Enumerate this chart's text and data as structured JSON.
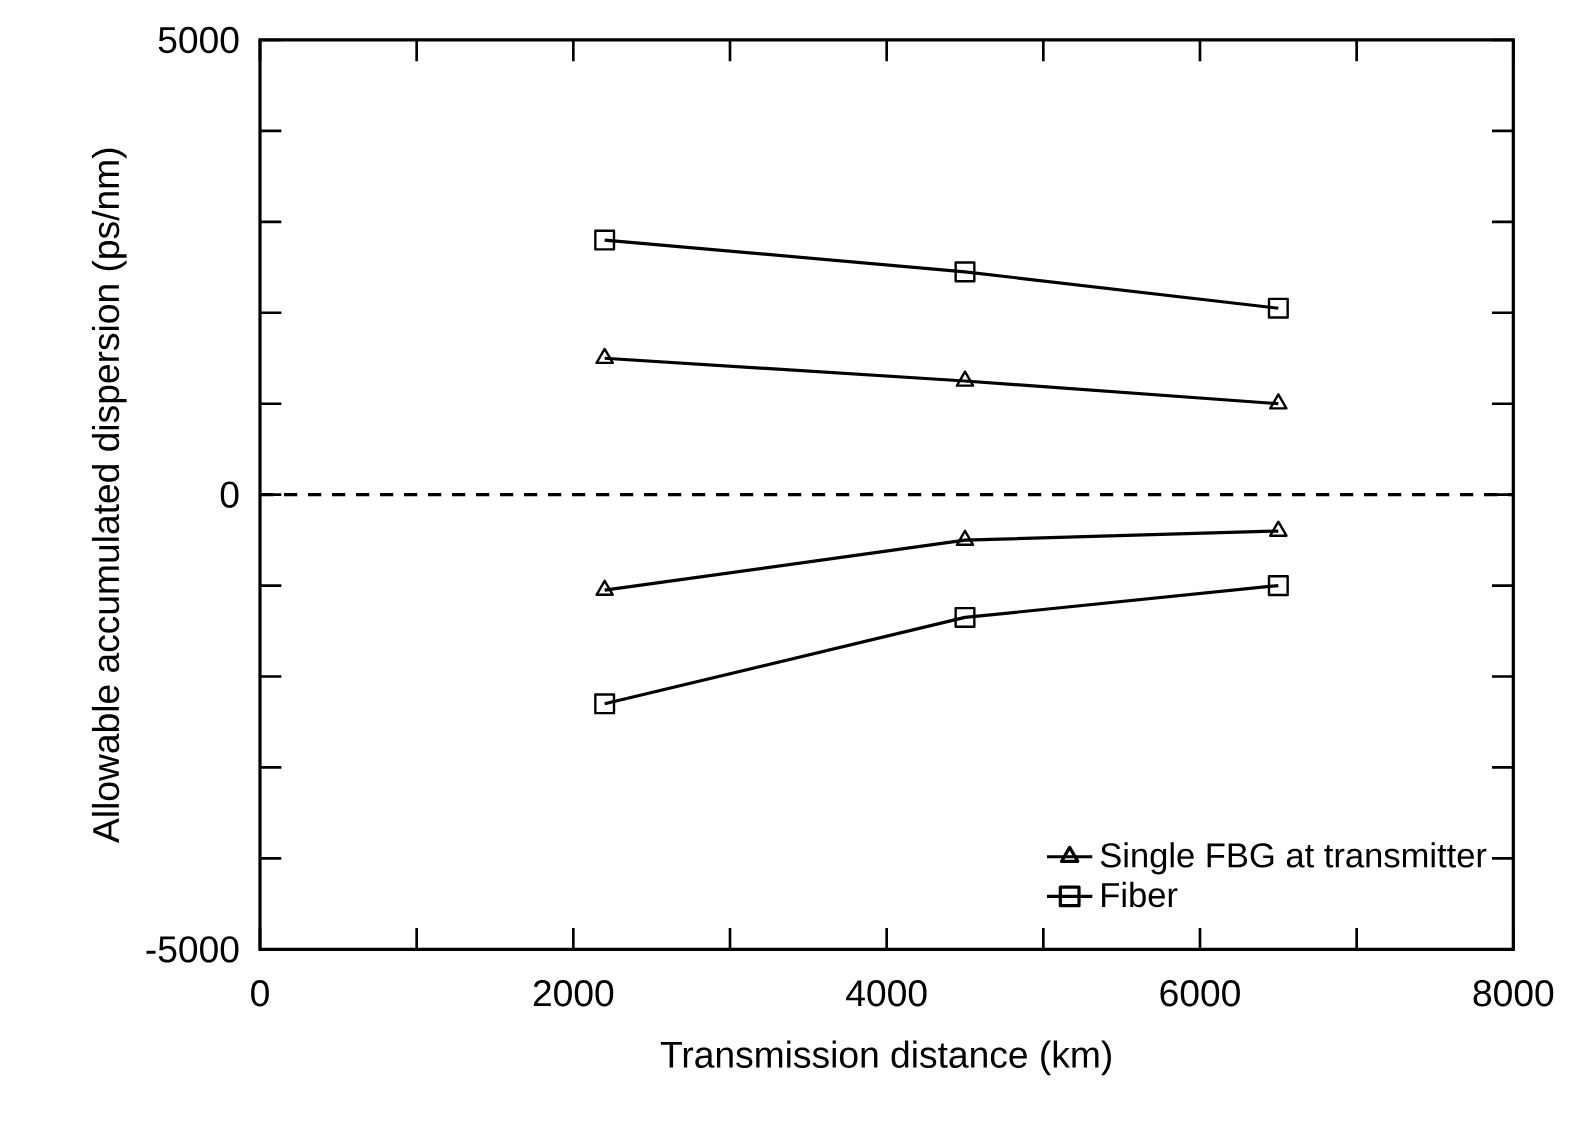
{
  "chart_data": {
    "type": "line",
    "xlabel": "Transmission distance (km)",
    "ylabel": "Allowable accumulated dispersion (ps/nm)",
    "xlim": [
      0,
      8000
    ],
    "ylim": [
      -5000,
      5000
    ],
    "xticks": [
      0,
      {
        "value": 1000,
        "label": null
      },
      2000,
      {
        "value": 3000,
        "label": null
      },
      4000,
      {
        "value": 5000,
        "label": null
      },
      6000,
      {
        "value": 7000,
        "label": null
      },
      8000
    ],
    "yticks": [
      -5000,
      {
        "value": -4000,
        "label": null
      },
      {
        "value": -3000,
        "label": null
      },
      {
        "value": -2000,
        "label": null
      },
      {
        "value": -1000,
        "label": null
      },
      0,
      {
        "value": 1000,
        "label": null
      },
      {
        "value": 2000,
        "label": null
      },
      {
        "value": 3000,
        "label": null
      },
      {
        "value": 4000,
        "label": null
      },
      5000
    ],
    "x": [
      2200,
      4500,
      6500
    ],
    "legend": "bottom right",
    "ref_lines": [
      {
        "axis": "y",
        "value": 0,
        "line_style": "dashed",
        "color": "#000000"
      }
    ],
    "series": [
      {
        "name": "Single FBG at transmitter",
        "color": "#000000",
        "marker": "triangle",
        "values": [
          1500,
          1250,
          1000
        ]
      },
      {
        "name": "Fiber",
        "color": "#000000",
        "marker": "square",
        "values": [
          2800,
          2450,
          2050
        ]
      },
      {
        "color": "#000000",
        "marker": "triangle",
        "values": [
          -1050,
          -500,
          -400
        ]
      },
      {
        "color": "#000000",
        "marker": "square",
        "values": [
          -2300,
          -1350,
          -1000
        ]
      }
    ]
  }
}
